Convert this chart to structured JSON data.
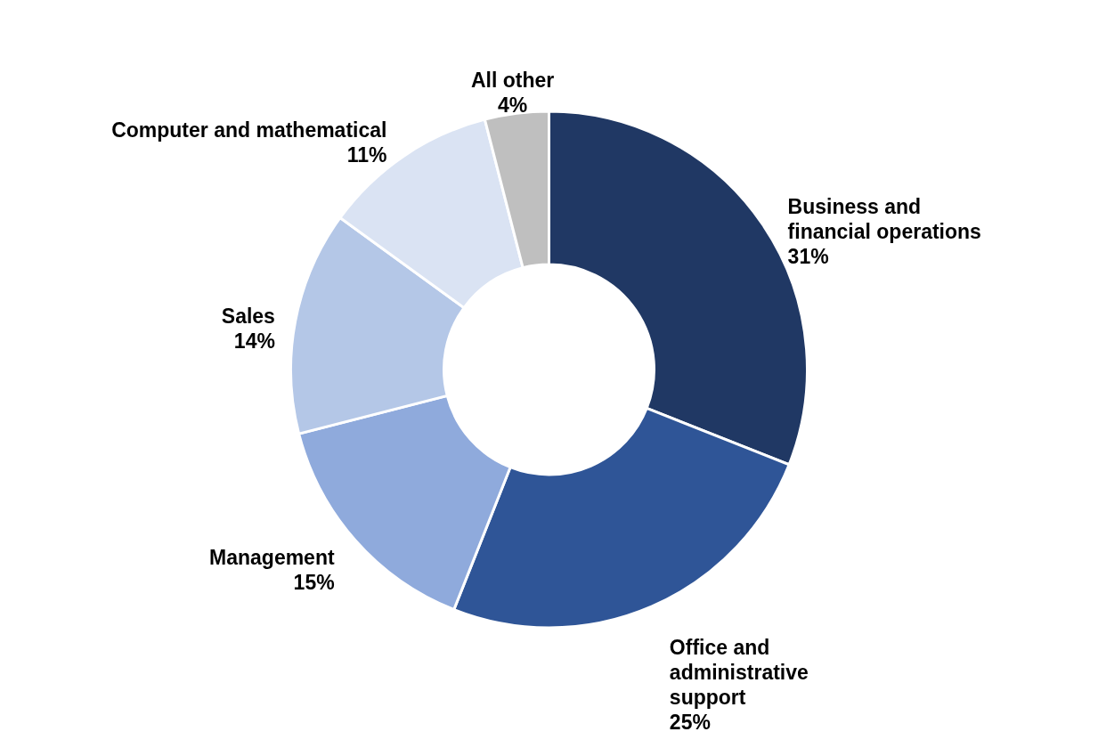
{
  "chart_data": {
    "type": "donut",
    "categories": [
      "Business and financial operations",
      "Office and administrative support",
      "Management",
      "Sales",
      "Computer and mathematical",
      "All other"
    ],
    "values": [
      31,
      25,
      15,
      14,
      11,
      4
    ],
    "value_labels": [
      "31%",
      "25%",
      "15%",
      "14%",
      "11%",
      "4%"
    ],
    "colors": [
      "#203864",
      "#2f5597",
      "#8faadc",
      "#b4c7e7",
      "#dae3f3",
      "#bfbfbf"
    ]
  }
}
